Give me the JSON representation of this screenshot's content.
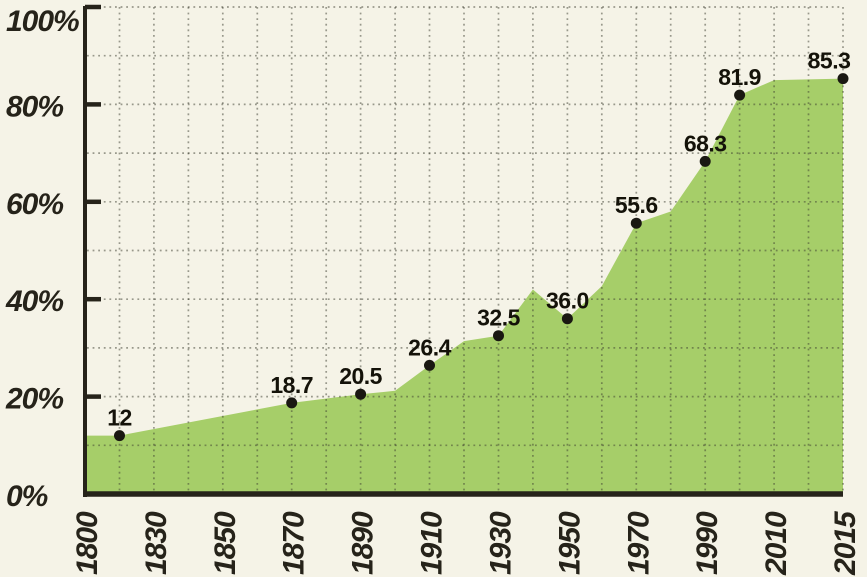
{
  "page": {
    "background_color": "#f5f3e7"
  },
  "chart_data": {
    "type": "area",
    "title": "",
    "xlabel": "",
    "ylabel": "",
    "unit": "%",
    "ylim": [
      0,
      100
    ],
    "x_tick_labels": [
      "1800",
      "1830",
      "1850",
      "1870",
      "1890",
      "1910",
      "1930",
      "1950",
      "1970",
      "1990",
      "2010",
      "2015"
    ],
    "y_tick_labels": [
      "0%",
      "20%",
      "40%",
      "60%",
      "80%",
      "100%"
    ],
    "y_tick_values": [
      0,
      20,
      40,
      60,
      80,
      100
    ],
    "grid": {
      "style": "dotted",
      "horizontal_every_percent": 10,
      "vertical_every_half_category": true
    },
    "legend": "none",
    "labeled_points": [
      {
        "label": "12",
        "value": 12,
        "pos": 0.5
      },
      {
        "label": "18.7",
        "value": 18.7,
        "pos": 3
      },
      {
        "label": "20.5",
        "value": 20.5,
        "pos": 4
      },
      {
        "label": "26.4",
        "value": 26.4,
        "pos": 5
      },
      {
        "label": "32.5",
        "value": 32.5,
        "pos": 6
      },
      {
        "label": "36.0",
        "value": 36,
        "pos": 7
      },
      {
        "label": "55.6",
        "value": 55.6,
        "pos": 8
      },
      {
        "label": "68.3",
        "value": 68.3,
        "pos": 9
      },
      {
        "label": "81.9",
        "value": 81.9,
        "pos": 9.5
      },
      {
        "label": "85.3",
        "value": 85.3,
        "pos": 11,
        "label_dx": -14
      }
    ],
    "unlabeled_outline_vertices": [
      {
        "pos": 0,
        "value": 12
      },
      {
        "pos": 4.5,
        "value": 21.2
      },
      {
        "pos": 5.5,
        "value": 31.4
      },
      {
        "pos": 6.5,
        "value": 42
      },
      {
        "pos": 7.5,
        "value": 42.7
      },
      {
        "pos": 8.5,
        "value": 58
      },
      {
        "pos": 10,
        "value": 85
      }
    ],
    "colors": {
      "area_fill": "#a6ce69",
      "background": "#f5f3e7",
      "axis": "#26231a",
      "grid_dots": "#3c3e30",
      "marker": "#1a1812",
      "point_label_text": "#141209",
      "tick_label_text": "#26231a"
    }
  }
}
